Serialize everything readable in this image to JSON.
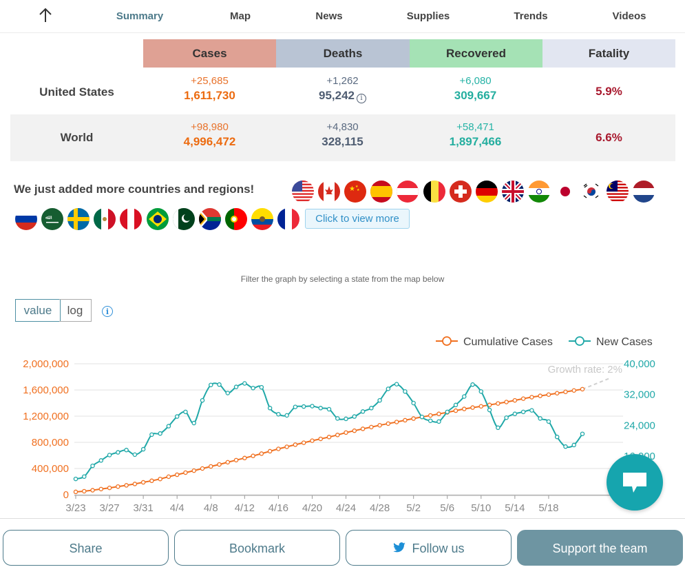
{
  "nav": {
    "tabs": [
      {
        "label": "Summary",
        "active": true
      },
      {
        "label": "Map"
      },
      {
        "label": "News"
      },
      {
        "label": "Supplies"
      },
      {
        "label": "Trends"
      },
      {
        "label": "Videos"
      }
    ]
  },
  "stats": {
    "headers": [
      "Cases",
      "Deaths",
      "Recovered",
      "Fatality"
    ],
    "header_colors": [
      "#dfa194",
      "#b9c4d4",
      "#a5e2b5",
      "#e2e6f1"
    ],
    "rows": [
      {
        "country": "United States",
        "cases_delta": "+25,685",
        "cases": "1,611,730",
        "deaths_delta": "+1,262",
        "deaths": "95,242",
        "recovered_delta": "+6,080",
        "recovered": "309,667",
        "fatality": "5.9%"
      },
      {
        "country": "World",
        "cases_delta": "+98,980",
        "cases": "4,996,472",
        "deaths_delta": "+4,830",
        "deaths": "328,115",
        "recovered_delta": "+58,471",
        "recovered": "1,897,466",
        "fatality": "6.6%"
      }
    ]
  },
  "regions": {
    "heading": "We just added more countries and regions!",
    "view_more": "Click to view more",
    "flags_row1": [
      "united-states",
      "canada",
      "china",
      "spain",
      "austria",
      "belgium",
      "switzerland",
      "germany",
      "united-kingdom",
      "india",
      "japan",
      "south-korea",
      "malaysia",
      "netherlands"
    ],
    "flags_row2": [
      "russia",
      "saudi-arabia",
      "sweden",
      "mexico",
      "peru",
      "brazil",
      "pakistan",
      "south-africa",
      "portugal",
      "ecuador",
      "france"
    ]
  },
  "filter_text": "Filter the graph by selecting a state from the map below",
  "scale_toggle": {
    "value_label": "value",
    "log_label": "log",
    "selected": "value"
  },
  "chart_data": {
    "type": "line",
    "x_start": "3/23",
    "x_ticks": [
      "3/23",
      "3/27",
      "3/31",
      "4/4",
      "4/8",
      "4/12",
      "4/16",
      "4/20",
      "4/24",
      "4/28",
      "5/2",
      "5/6",
      "5/10",
      "5/14",
      "5/18"
    ],
    "left_axis": {
      "ticks": [
        "0",
        "400,000",
        "800,000",
        "1,200,000",
        "1,600,000",
        "2,000,000"
      ],
      "range": [
        0,
        2000000
      ],
      "color": "#f07020"
    },
    "right_axis": {
      "ticks": [
        "16,000",
        "24,000",
        "32,000",
        "40,000"
      ],
      "range": [
        6000,
        40000
      ],
      "color": "#20a8a8"
    },
    "annotation": "Growth rate: 2%",
    "series": [
      {
        "name": "Cumulative Cases",
        "axis": "left",
        "color": "#f07020",
        "values": [
          43000,
          53000,
          68000,
          86000,
          104000,
          124000,
          143000,
          164000,
          189000,
          213000,
          240000,
          275000,
          305000,
          337000,
          367000,
          400000,
          432000,
          462000,
          496000,
          528000,
          560000,
          593000,
          627000,
          664000,
          700000,
          732000,
          764000,
          794000,
          825000,
          853000,
          881000,
          913000,
          949000,
          977000,
          1006000,
          1033000,
          1061000,
          1086000,
          1111000,
          1138000,
          1163000,
          1187000,
          1211000,
          1235000,
          1258000,
          1284000,
          1310000,
          1331000,
          1350000,
          1372000,
          1394000,
          1416000,
          1441000,
          1467000,
          1490000,
          1510000,
          1529000,
          1550000,
          1571000,
          1592000,
          1612000
        ]
      },
      {
        "name": "New Cases",
        "axis": "right",
        "color": "#20a8a8",
        "values": [
          10100,
          10700,
          13500,
          14900,
          16300,
          17000,
          17600,
          16400,
          17800,
          21600,
          21900,
          23800,
          26300,
          27500,
          24600,
          30500,
          34500,
          34600,
          32400,
          34000,
          34900,
          33700,
          33900,
          28500,
          26900,
          26600,
          28800,
          28900,
          29000,
          28500,
          28200,
          25800,
          25700,
          26300,
          27600,
          28500,
          30500,
          33500,
          34700,
          32800,
          29800,
          26200,
          25200,
          25000,
          27500,
          29300,
          31500,
          34600,
          32800,
          28000,
          23400,
          26000,
          27000,
          27500,
          27900,
          25800,
          25000,
          21000,
          18500,
          18900,
          21800
        ]
      }
    ]
  },
  "bottom": {
    "share": "Share",
    "bookmark": "Bookmark",
    "follow": "Follow us",
    "support": "Support the team"
  }
}
